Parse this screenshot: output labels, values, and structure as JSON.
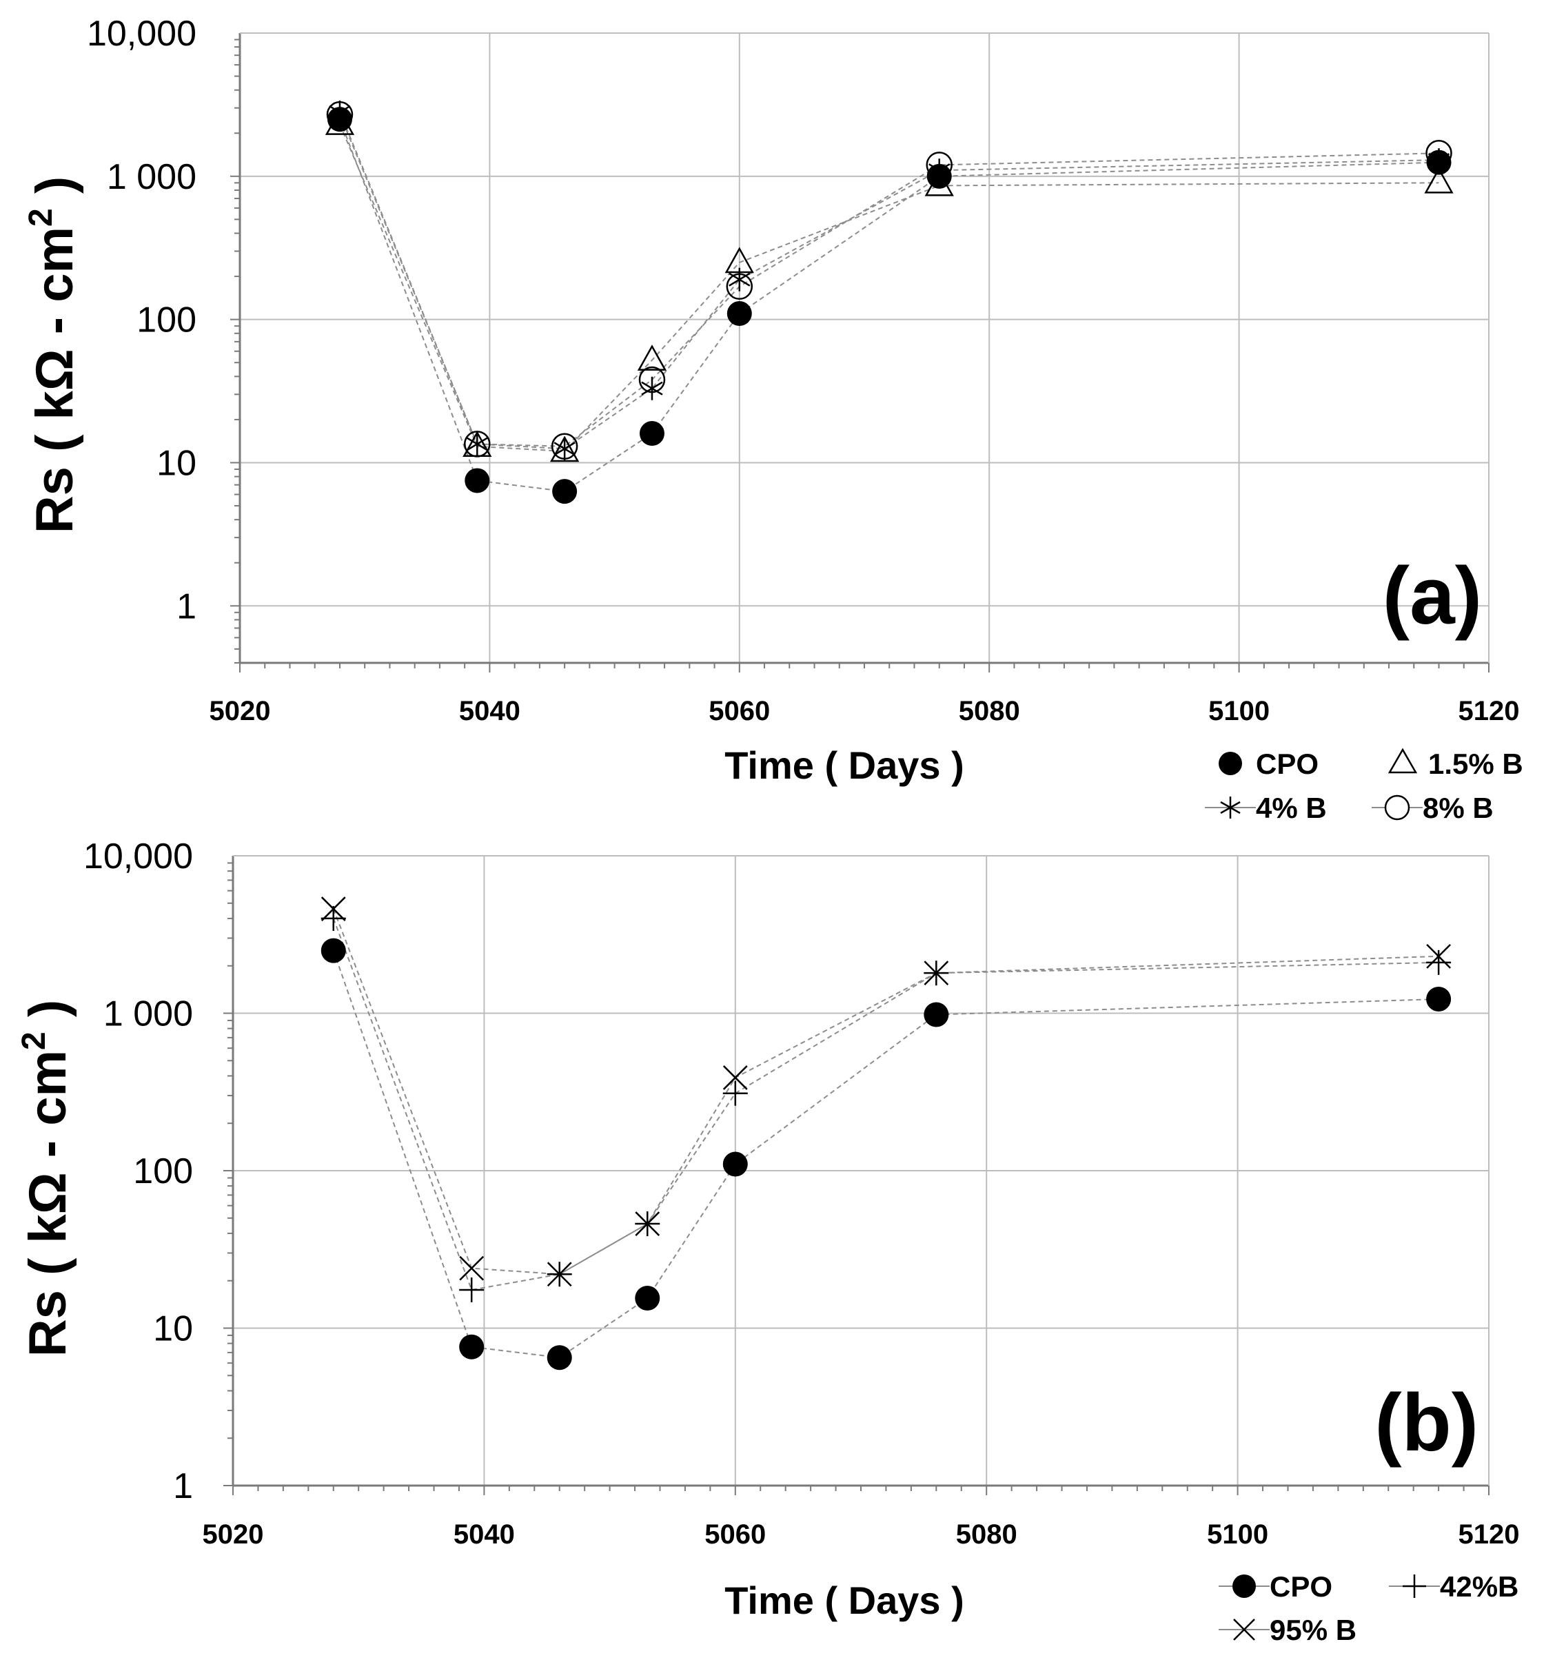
{
  "chart_data": [
    {
      "type": "scatter",
      "panel_label": "(a)",
      "xlabel": "Time  ( Days )",
      "ylabel": "Rs  ( kΩ - cm² )",
      "ylabel_parts": {
        "main": "Rs  ( kΩ - cm",
        "sup": "2",
        "end": " )"
      },
      "yscale": "log",
      "xlim": [
        5020,
        5120
      ],
      "ylim": [
        0.4,
        10000
      ],
      "x_ticks": [
        "5020",
        "5040",
        "5060",
        "5080",
        "5100",
        "5120"
      ],
      "y_ticks": [
        {
          "value": 1,
          "label": "1"
        },
        {
          "value": 10,
          "label": "10"
        },
        {
          "value": 100,
          "label": "100"
        },
        {
          "value": 1000,
          "label": "1 000"
        },
        {
          "value": 10000,
          "label": "10,000"
        }
      ],
      "x": [
        5028,
        5039,
        5046,
        5053,
        5060,
        5076,
        5116
      ],
      "series": [
        {
          "name": "CPO",
          "marker": "filled-circle",
          "values": [
            2500,
            7.5,
            6.3,
            16,
            110,
            1000,
            1250
          ]
        },
        {
          "name": "1.5% B",
          "marker": "triangle",
          "values": [
            2300,
            13,
            12,
            52,
            250,
            860,
            900
          ]
        },
        {
          "name": "4% B",
          "marker": "asterisk",
          "values": [
            2800,
            13.5,
            12.5,
            33,
            190,
            1100,
            1300
          ]
        },
        {
          "name": "8% B",
          "marker": "open-circle",
          "values": [
            2700,
            13.5,
            13,
            38,
            170,
            1200,
            1450
          ]
        }
      ]
    },
    {
      "type": "scatter",
      "panel_label": "(b)",
      "xlabel": "Time  ( Days )",
      "ylabel": "Rs  ( kΩ - cm² )",
      "ylabel_parts": {
        "main": "Rs  ( kΩ - cm",
        "sup": "2",
        "end": " )"
      },
      "yscale": "log",
      "xlim": [
        5020,
        5120
      ],
      "ylim": [
        1,
        10000
      ],
      "x_ticks": [
        "5020",
        "5040",
        "5060",
        "5080",
        "5100",
        "5120"
      ],
      "y_ticks": [
        {
          "value": 1,
          "label": "1"
        },
        {
          "value": 10,
          "label": "10"
        },
        {
          "value": 100,
          "label": "100"
        },
        {
          "value": 1000,
          "label": "1 000"
        },
        {
          "value": 10000,
          "label": "10,000"
        }
      ],
      "x": [
        5028,
        5039,
        5046,
        5053,
        5060,
        5076,
        5116
      ],
      "series": [
        {
          "name": "CPO",
          "marker": "filled-circle",
          "values": [
            2500,
            7.6,
            6.5,
            15.5,
            110,
            980,
            1230
          ]
        },
        {
          "name": "42%B",
          "marker": "plus",
          "values": [
            4000,
            17.5,
            22,
            46,
            310,
            1800,
            2100
          ]
        },
        {
          "name": "95% B",
          "marker": "cross",
          "values": [
            4600,
            24,
            22,
            46,
            390,
            1800,
            2300
          ]
        }
      ]
    }
  ]
}
